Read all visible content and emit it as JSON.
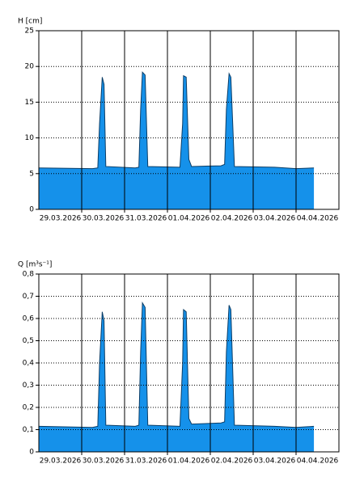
{
  "chart_data": [
    {
      "type": "area",
      "y_label": "H [cm]",
      "xlim": [
        "2026-03-29T00:00",
        "2026-04-05T00:00"
      ],
      "categories": [
        "29.03.2026",
        "30.03.2026",
        "31.03.2026",
        "01.04.2026",
        "02.04.2026",
        "03.04.2026",
        "04.04.2026"
      ],
      "ylim": [
        0,
        25
      ],
      "yticks": [
        0,
        5,
        10,
        15,
        20,
        25
      ],
      "grid": true,
      "series": [
        {
          "color": "#1591ea",
          "x": [
            "2026-03-29T00:00",
            "2026-03-30T06:00",
            "2026-03-30T09:00",
            "2026-03-30T10:00",
            "2026-03-30T11:30",
            "2026-03-30T12:30",
            "2026-03-30T13:30",
            "2026-03-31T06:00",
            "2026-03-31T08:00",
            "2026-03-31T09:00",
            "2026-03-31T10:00",
            "2026-03-31T11:30",
            "2026-03-31T13:00",
            "2026-04-01T07:00",
            "2026-04-01T08:30",
            "2026-04-01T09:00",
            "2026-04-01T10:30",
            "2026-04-01T12:00",
            "2026-04-01T13:30",
            "2026-04-02T06:00",
            "2026-04-02T08:00",
            "2026-04-02T09:00",
            "2026-04-02T10:30",
            "2026-04-02T11:30",
            "2026-04-02T13:30",
            "2026-04-03T12:00",
            "2026-04-04T00:00",
            "2026-04-04T10:00"
          ],
          "values": [
            5.8,
            5.7,
            5.8,
            12,
            18.5,
            17.5,
            6.0,
            5.8,
            5.9,
            14,
            19.2,
            18.8,
            6.0,
            5.9,
            12,
            18.7,
            18.5,
            7,
            6.0,
            6.1,
            6.3,
            14,
            19,
            18.5,
            6.0,
            5.9,
            5.7,
            5.8
          ]
        }
      ]
    },
    {
      "type": "area",
      "y_label": "Q [m³s⁻¹]",
      "xlim": [
        "2026-03-29T00:00",
        "2026-04-05T00:00"
      ],
      "categories": [
        "29.03.2026",
        "30.03.2026",
        "31.03.2026",
        "01.04.2026",
        "02.04.2026",
        "03.04.2026",
        "04.04.2026"
      ],
      "ylim": [
        0,
        0.8
      ],
      "yticks": [
        0,
        {
          "value": 0.1,
          "label": "0,1"
        },
        {
          "value": 0.2,
          "label": "0,2"
        },
        {
          "value": 0.3,
          "label": "0,3"
        },
        {
          "value": 0.4,
          "label": "0,4"
        },
        {
          "value": 0.5,
          "label": "0,5"
        },
        {
          "value": 0.6,
          "label": "0,6"
        },
        {
          "value": 0.7,
          "label": "0,7"
        },
        {
          "value": 0.8,
          "label": "0,8"
        }
      ],
      "grid": true,
      "series": [
        {
          "color": "#1591ea",
          "x": [
            "2026-03-29T00:00",
            "2026-03-30T06:00",
            "2026-03-30T09:00",
            "2026-03-30T10:00",
            "2026-03-30T11:30",
            "2026-03-30T12:30",
            "2026-03-30T13:30",
            "2026-03-31T06:00",
            "2026-03-31T08:00",
            "2026-03-31T09:00",
            "2026-03-31T10:00",
            "2026-03-31T11:30",
            "2026-03-31T13:00",
            "2026-04-01T07:00",
            "2026-04-01T08:30",
            "2026-04-01T09:00",
            "2026-04-01T10:30",
            "2026-04-01T12:00",
            "2026-04-01T13:30",
            "2026-04-02T06:00",
            "2026-04-02T08:00",
            "2026-04-02T09:00",
            "2026-04-02T10:30",
            "2026-04-02T11:30",
            "2026-04-02T13:30",
            "2026-04-03T12:00",
            "2026-04-04T00:00",
            "2026-04-04T10:00"
          ],
          "values": [
            0.115,
            0.11,
            0.115,
            0.4,
            0.63,
            0.59,
            0.12,
            0.115,
            0.12,
            0.45,
            0.67,
            0.65,
            0.12,
            0.115,
            0.4,
            0.64,
            0.63,
            0.15,
            0.125,
            0.13,
            0.135,
            0.45,
            0.66,
            0.64,
            0.12,
            0.115,
            0.11,
            0.115
          ]
        }
      ]
    }
  ]
}
